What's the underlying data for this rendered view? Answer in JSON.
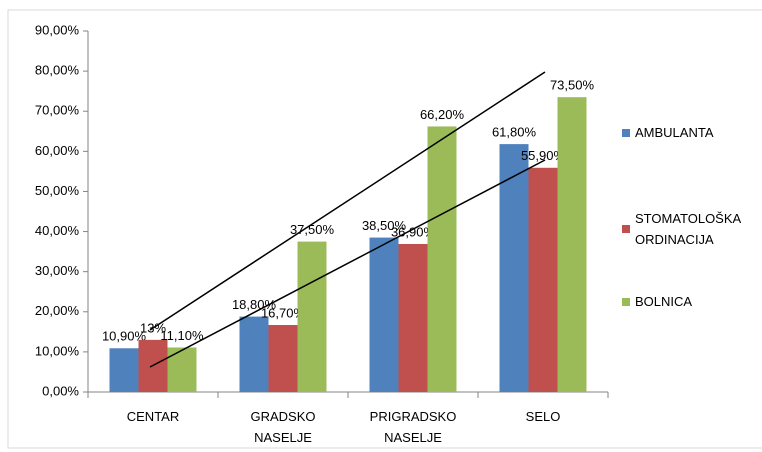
{
  "chart_data": {
    "type": "bar",
    "categories": [
      "CENTAR",
      "GRADSKO NASELJE",
      "PRIGRADSKO NASELJE",
      "SELO"
    ],
    "series": [
      {
        "name": "AMBULANTA",
        "color": "#4f81bd",
        "values": [
          10.9,
          18.8,
          38.5,
          61.8
        ],
        "value_labels": [
          "10,90%",
          "18,80%",
          "38,50%",
          "61,80%"
        ]
      },
      {
        "name": "STOMATOLOŠKA ORDINACIJA",
        "color": "#c0504d",
        "values": [
          13,
          16.7,
          36.9,
          55.9
        ],
        "value_labels": [
          "13%",
          "16,70%",
          "36,90%",
          "55,90%"
        ]
      },
      {
        "name": "BOLNICA",
        "color": "#9bbb59",
        "values": [
          11.1,
          37.5,
          66.2,
          73.5
        ],
        "value_labels": [
          "11,10%",
          "37,50%",
          "66,20%",
          "73,50%"
        ]
      }
    ],
    "ylim": [
      0,
      90
    ],
    "yticks": [
      {
        "value": 0,
        "label": "0,00%"
      },
      {
        "value": 10,
        "label": "10,00%"
      },
      {
        "value": 20,
        "label": "20,00%"
      },
      {
        "value": 30,
        "label": "30,00%"
      },
      {
        "value": 40,
        "label": "40,00%"
      },
      {
        "value": 50,
        "label": "50,00%"
      },
      {
        "value": 60,
        "label": "60,00%"
      },
      {
        "value": 70,
        "label": "70,00%"
      },
      {
        "value": 80,
        "label": "80,00%"
      },
      {
        "value": 90,
        "label": "90,00%"
      }
    ],
    "grid": false,
    "legend": "right"
  }
}
